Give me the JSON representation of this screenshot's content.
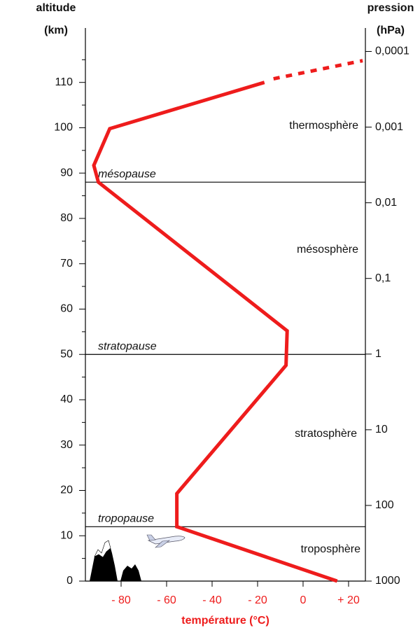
{
  "chart_data": {
    "type": "line",
    "y_title_lines": [
      "altitude",
      "(km)"
    ],
    "y2_title_lines": [
      "pression",
      "(hPa)"
    ],
    "x_title": "température (°C)",
    "xlim": [
      -95.7,
      27.4
    ],
    "xticks": [
      {
        "value": -80,
        "label": "- 80"
      },
      {
        "value": -60,
        "label": "- 60"
      },
      {
        "value": -40,
        "label": "- 40"
      },
      {
        "value": -20,
        "label": "- 20"
      },
      0,
      {
        "value": 20,
        "label": "+ 20"
      }
    ],
    "ylim": [
      0,
      122
    ],
    "yticks": [
      0,
      10,
      20,
      30,
      40,
      50,
      60,
      70,
      80,
      90,
      100,
      110
    ],
    "y_minor_ticks": [
      5,
      15,
      25,
      35,
      45,
      55,
      65,
      75,
      85,
      95,
      105,
      115
    ],
    "y2_log": true,
    "y2lim": [
      1000,
      4.9e-05
    ],
    "y2ticks": [
      1000,
      100,
      10,
      1,
      {
        "value": 0.1,
        "label": "0,1"
      },
      {
        "value": 0.01,
        "label": "0,01"
      },
      {
        "value": 0.001,
        "label": "0,001"
      },
      {
        "value": 0.0001,
        "label": "0,0001"
      }
    ],
    "series": [
      {
        "color": "#ee1c1c",
        "style": "solid",
        "x": [
          15,
          -55.5,
          -55.5,
          -7.5,
          -7,
          -90,
          -92,
          -85,
          -17
        ],
        "values": [
          0,
          12,
          19.3,
          47.6,
          55.2,
          88,
          91.7,
          99.8,
          110
        ]
      },
      {
        "color": "#ee1c1c",
        "style": "dotted",
        "x": [
          -13,
          26.2
        ],
        "values": [
          110.8,
          114.8
        ]
      }
    ],
    "boundaries": [
      {
        "label": "tropopause",
        "altitude": 12
      },
      {
        "label": "stratopause",
        "altitude": 50
      },
      {
        "label": "mésopause",
        "altitude": 88
      }
    ],
    "layers": [
      "troposphère",
      "stratosphère",
      "mésosphère",
      "thermosphère"
    ]
  }
}
